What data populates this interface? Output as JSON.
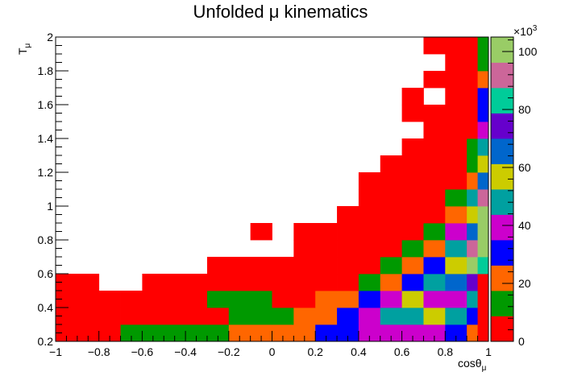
{
  "chart_data": {
    "type": "heatmap",
    "title": "Unfolded μ kinematics",
    "xlabel": "cosθ",
    "xlabel_sub": "μ",
    "ylabel": "T",
    "ylabel_sub": "μ",
    "x_edges": [
      -1.0,
      -0.9,
      -0.8,
      -0.7,
      -0.6,
      -0.5,
      -0.4,
      -0.3,
      -0.2,
      -0.1,
      0.0,
      0.1,
      0.2,
      0.3,
      0.4,
      0.5,
      0.6,
      0.7,
      0.8,
      0.9,
      0.95,
      1.0
    ],
    "y_edges": [
      0.2,
      0.3,
      0.4,
      0.5,
      0.6,
      0.7,
      0.8,
      0.9,
      1.0,
      1.1,
      1.2,
      1.3,
      1.4,
      1.5,
      1.6,
      1.7,
      1.8,
      1.9,
      2.0
    ],
    "xlim": [
      -1,
      1
    ],
    "ylim": [
      0.2,
      2
    ],
    "xticks": [
      "−1",
      "−0.8",
      "−0.6",
      "−0.4",
      "−0.2",
      "0",
      "0.2",
      "0.4",
      "0.6",
      "0.8",
      "1"
    ],
    "yticks": [
      "0.2",
      "0.4",
      "0.6",
      "0.8",
      "1",
      "1.2",
      "1.4",
      "1.6",
      "1.8",
      "2"
    ],
    "zlim": [
      0,
      105000
    ],
    "z_multiplier": "×10",
    "z_multiplier_exp": "3",
    "zticks": [
      "0",
      "20",
      "40",
      "60",
      "80",
      "100"
    ],
    "palette": [
      "#ff0000",
      "#009900",
      "#ff6600",
      "#0000ff",
      "#cc00cc",
      "#00a0a0",
      "#cccc00",
      "#0066cc",
      "#6600cc",
      "#00cc99",
      "#cc6699",
      "#99cc66"
    ],
    "z": [
      [
        4000,
        4000,
        4000,
        9000,
        9000,
        9000,
        9000,
        9000,
        18000,
        18000,
        18000,
        18000,
        27000,
        27000,
        37000,
        37000,
        37000,
        37000,
        27000,
        18000,
        4000
      ],
      [
        4000,
        4000,
        4000,
        4000,
        4000,
        4000,
        4000,
        4000,
        9000,
        9000,
        9000,
        18000,
        18000,
        27000,
        37000,
        46000,
        46000,
        55000,
        46000,
        27000,
        4000
      ],
      [
        4000,
        4000,
        4000,
        4000,
        4000,
        4000,
        4000,
        9000,
        9000,
        9000,
        4000,
        4000,
        18000,
        18000,
        27000,
        37000,
        55000,
        37000,
        37000,
        46000,
        4000
      ],
      [
        4000,
        4000,
        0,
        0,
        4000,
        4000,
        4000,
        4000,
        4000,
        4000,
        4000,
        4000,
        4000,
        4000,
        9000,
        18000,
        27000,
        46000,
        64000,
        73000,
        4000
      ],
      [
        0,
        0,
        0,
        0,
        0,
        0,
        0,
        4000,
        4000,
        4000,
        4000,
        4000,
        4000,
        4000,
        4000,
        9000,
        18000,
        27000,
        55000,
        100000,
        82000
      ],
      [
        0,
        0,
        0,
        0,
        0,
        0,
        0,
        0,
        0,
        0,
        0,
        4000,
        4000,
        4000,
        4000,
        4000,
        9000,
        18000,
        46000,
        91000,
        100000
      ],
      [
        0,
        0,
        0,
        0,
        0,
        0,
        0,
        0,
        0,
        4000,
        0,
        4000,
        4000,
        4000,
        4000,
        4000,
        4000,
        9000,
        37000,
        64000,
        100000
      ],
      [
        0,
        0,
        0,
        0,
        0,
        0,
        0,
        0,
        0,
        0,
        0,
        0,
        0,
        4000,
        4000,
        4000,
        4000,
        4000,
        18000,
        55000,
        100000
      ],
      [
        0,
        0,
        0,
        0,
        0,
        0,
        0,
        0,
        0,
        0,
        0,
        0,
        0,
        0,
        4000,
        4000,
        4000,
        4000,
        9000,
        46000,
        91000
      ],
      [
        0,
        0,
        0,
        0,
        0,
        0,
        0,
        0,
        0,
        0,
        0,
        0,
        0,
        0,
        4000,
        4000,
        4000,
        4000,
        4000,
        18000,
        64000
      ],
      [
        0,
        0,
        0,
        0,
        0,
        0,
        0,
        0,
        0,
        0,
        0,
        0,
        0,
        0,
        0,
        4000,
        4000,
        4000,
        4000,
        9000,
        55000
      ],
      [
        0,
        0,
        0,
        0,
        0,
        0,
        0,
        0,
        0,
        0,
        0,
        0,
        0,
        0,
        0,
        0,
        4000,
        4000,
        4000,
        9000,
        46000
      ],
      [
        0,
        0,
        0,
        0,
        0,
        0,
        0,
        0,
        0,
        0,
        0,
        0,
        0,
        0,
        0,
        0,
        0,
        4000,
        4000,
        4000,
        37000
      ],
      [
        0,
        0,
        0,
        0,
        0,
        0,
        0,
        0,
        0,
        0,
        0,
        0,
        0,
        0,
        0,
        0,
        4000,
        4000,
        4000,
        4000,
        27000
      ],
      [
        0,
        0,
        0,
        0,
        0,
        0,
        0,
        0,
        0,
        0,
        0,
        0,
        0,
        0,
        0,
        0,
        4000,
        0,
        4000,
        4000,
        27000
      ],
      [
        0,
        0,
        0,
        0,
        0,
        0,
        0,
        0,
        0,
        0,
        0,
        0,
        0,
        0,
        0,
        0,
        0,
        4000,
        4000,
        4000,
        18000
      ],
      [
        0,
        0,
        0,
        0,
        0,
        0,
        0,
        0,
        0,
        0,
        0,
        0,
        0,
        0,
        0,
        0,
        0,
        0,
        4000,
        4000,
        9000
      ],
      [
        0,
        0,
        0,
        0,
        0,
        0,
        0,
        0,
        0,
        0,
        0,
        0,
        0,
        0,
        0,
        0,
        0,
        4000,
        4000,
        4000,
        9000
      ]
    ]
  }
}
